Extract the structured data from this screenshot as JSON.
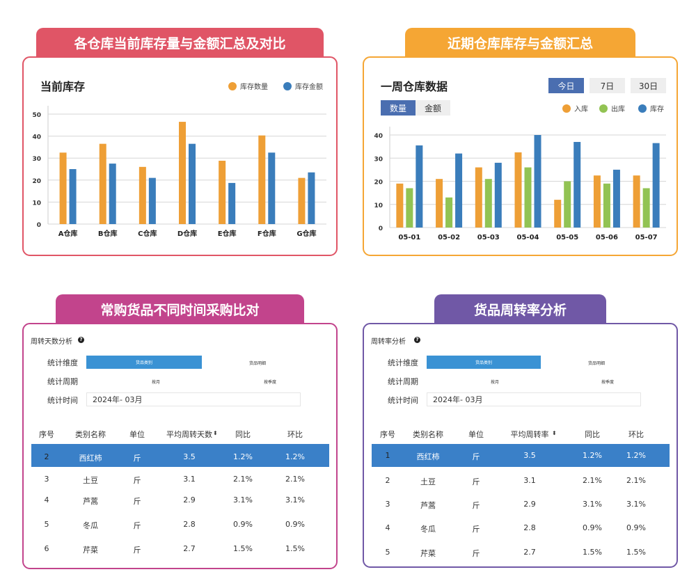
{
  "panels": {
    "p1": {
      "banner": "各仓库当前库存量与金额汇总及对比",
      "title": "当前库存",
      "legend": [
        "库存数量",
        "库存金额"
      ]
    },
    "p2": {
      "banner": "近期仓库库存与金额汇总",
      "title": "一周仓库数据",
      "range_buttons": [
        "今日",
        "7日",
        "30日"
      ],
      "active_range": "今日",
      "metric_buttons": [
        "数量",
        "金额"
      ],
      "active_metric": "数量",
      "legend": [
        "入库",
        "出库",
        "库存"
      ]
    },
    "p3": {
      "banner": "常购货品不同时间采购比对",
      "section": "周转天数分析",
      "help_icon": "question-circle-icon",
      "form": {
        "dim_label": "统计维度",
        "dim_options": [
          "货品类别",
          "货品明细"
        ],
        "period_label": "统计周期",
        "period_options": [
          "按月",
          "按季度"
        ],
        "time_label": "统计时间",
        "time_value": "2024年- 03月"
      },
      "table": {
        "headers": [
          "序号",
          "类别名称",
          "单位",
          "平均周转天数",
          "同比",
          "环比"
        ],
        "rows": [
          [
            "2",
            "西红柿",
            "斤",
            "3.5",
            "1.2%",
            "1.2%"
          ],
          [
            "3",
            "土豆",
            "斤",
            "3.1",
            "2.1%",
            "2.1%"
          ],
          [
            "4",
            "芦蒿",
            "斤",
            "2.9",
            "3.1%",
            "3.1%"
          ],
          [
            "5",
            "冬瓜",
            "斤",
            "2.8",
            "0.9%",
            "0.9%"
          ],
          [
            "6",
            "芹菜",
            "斤",
            "2.7",
            "1.5%",
            "1.5%"
          ]
        ]
      }
    },
    "p4": {
      "banner": "货品周转率分析",
      "section": "周转率分析",
      "help_icon": "question-circle-icon",
      "form": {
        "dim_label": "统计维度",
        "dim_options": [
          "货品类别",
          "货品明细"
        ],
        "period_label": "统计周期",
        "period_options": [
          "按月",
          "按季度"
        ],
        "time_label": "统计时间",
        "time_value": "2024年- 03月"
      },
      "table": {
        "headers": [
          "序号",
          "类别名称",
          "单位",
          "平均周转率",
          "同比",
          "环比"
        ],
        "rows": [
          [
            "1",
            "西红柿",
            "斤",
            "3.5",
            "1.2%",
            "1.2%"
          ],
          [
            "2",
            "土豆",
            "斤",
            "3.1",
            "2.1%",
            "2.1%"
          ],
          [
            "3",
            "芦蒿",
            "斤",
            "2.9",
            "3.1%",
            "3.1%"
          ],
          [
            "4",
            "冬瓜",
            "斤",
            "2.8",
            "0.9%",
            "0.9%"
          ],
          [
            "5",
            "芹菜",
            "斤",
            "2.7",
            "1.5%",
            "1.5%"
          ]
        ]
      }
    }
  },
  "colors": {
    "red": "#e05566",
    "orange": "#f5a634",
    "magenta": "#c2448c",
    "purple": "#7058a6",
    "bar_orange": "#ee9f36",
    "bar_blue": "#3a7dbb",
    "bar_green": "#92c353",
    "highlight": "#3a80c8"
  },
  "chart_data": [
    {
      "type": "bar",
      "title": "当前库存",
      "categories": [
        "A仓库",
        "B仓库",
        "C仓库",
        "D仓库",
        "E仓库",
        "F仓库",
        "G仓库"
      ],
      "series": [
        {
          "name": "库存数量",
          "values": [
            32.5,
            36.5,
            26,
            46.5,
            28.8,
            40.3,
            21
          ]
        },
        {
          "name": "库存金额",
          "values": [
            25,
            27.5,
            21,
            36.5,
            18.7,
            32.5,
            23.5
          ]
        }
      ],
      "yticks": [
        0,
        10,
        20,
        30,
        40,
        50
      ],
      "ylim": [
        0,
        50
      ],
      "grid": true,
      "legend": "top-right"
    },
    {
      "type": "bar",
      "title": "一周仓库数据",
      "categories": [
        "05-01",
        "05-02",
        "05-03",
        "05-04",
        "05-05",
        "05-06",
        "05-07"
      ],
      "series": [
        {
          "name": "入库",
          "values": [
            19,
            21,
            26,
            32.5,
            12,
            22.5,
            22.5
          ]
        },
        {
          "name": "出库",
          "values": [
            17,
            13,
            21,
            26,
            20,
            19,
            17
          ]
        },
        {
          "name": "库存",
          "values": [
            35.5,
            32,
            28,
            40,
            37,
            25,
            36.5
          ]
        }
      ],
      "yticks": [
        0,
        10,
        20,
        30,
        40
      ],
      "ylim": [
        0,
        40
      ],
      "grid": true,
      "legend": "top-right"
    }
  ]
}
